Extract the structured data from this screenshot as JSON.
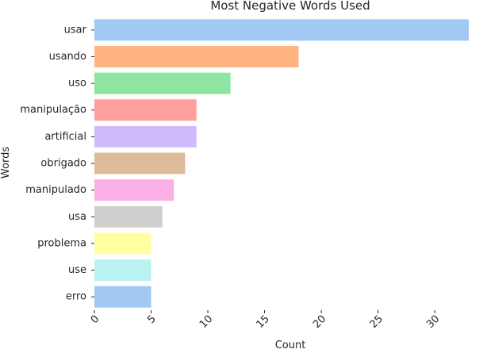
{
  "chart_data": {
    "type": "bar",
    "orientation": "horizontal",
    "title": "Most Negative Words Used",
    "xlabel": "Count",
    "ylabel": "Words",
    "categories": [
      "usar",
      "usando",
      "uso",
      "manipulação",
      "artificial",
      "obrigado",
      "manipulado",
      "usa",
      "problema",
      "use",
      "erro"
    ],
    "values": [
      33,
      18,
      12,
      9,
      9,
      8,
      7,
      6,
      5,
      5,
      5
    ],
    "colors": [
      "#a1c9f4",
      "#ffb482",
      "#8de5a1",
      "#ff9f9b",
      "#d0bbff",
      "#debb9b",
      "#fab0e4",
      "#cfcfcf",
      "#fffea3",
      "#b9f2f0",
      "#a1c9f4"
    ],
    "xlim": [
      0,
      33
    ],
    "xticks": [
      0,
      5,
      10,
      15,
      20,
      25,
      30
    ],
    "xtick_rotation": 45,
    "grid": false,
    "legend": false
  }
}
